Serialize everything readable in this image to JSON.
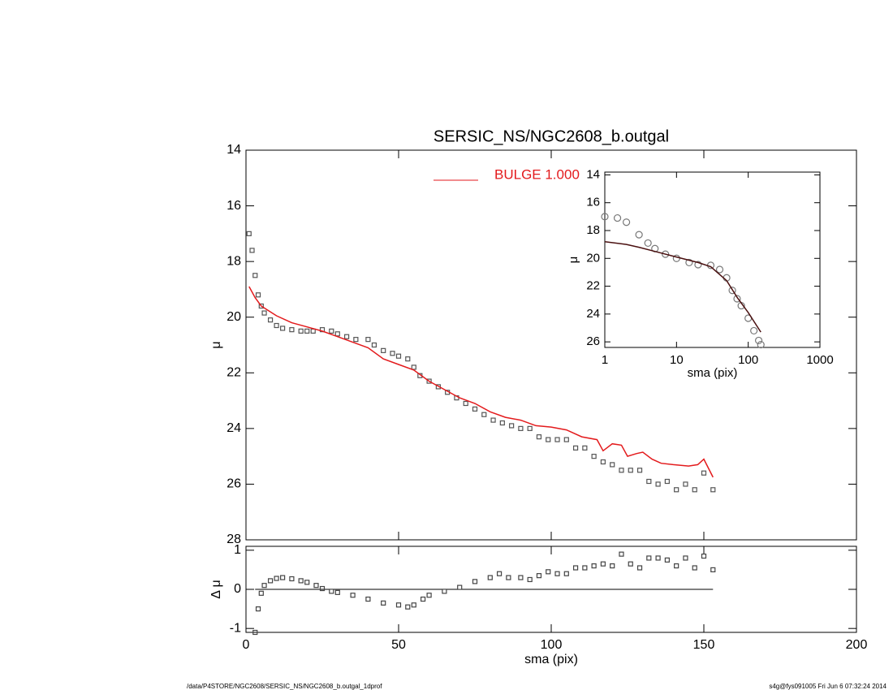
{
  "chart_data": [
    {
      "type": "scatter",
      "title": "SERSIC_NS/NGC2608_b.outgal",
      "ylabel": "μ",
      "xlim": [
        0,
        200
      ],
      "xticks": [
        0,
        50,
        100,
        150,
        200
      ],
      "show_xtick_labels": false,
      "ylim": [
        28,
        14
      ],
      "yticks": [
        14,
        16,
        18,
        20,
        22,
        24,
        26,
        28
      ],
      "legend": "top-center",
      "series": [
        {
          "kind": "points",
          "marker": "square",
          "color": "#555555",
          "x": [
            1,
            2,
            3,
            4,
            5,
            6,
            8,
            10,
            12,
            15,
            18,
            20,
            22,
            25,
            28,
            30,
            33,
            36,
            40,
            42,
            45,
            48,
            50,
            53,
            55,
            57,
            60,
            63,
            66,
            69,
            72,
            75,
            78,
            81,
            84,
            87,
            90,
            93,
            96,
            99,
            102,
            105,
            108,
            111,
            114,
            117,
            120,
            123,
            126,
            129,
            132,
            135,
            138,
            141,
            144,
            147,
            150,
            153
          ],
          "values": [
            17.0,
            17.6,
            18.5,
            19.2,
            19.6,
            19.85,
            20.1,
            20.3,
            20.4,
            20.45,
            20.5,
            20.5,
            20.5,
            20.45,
            20.5,
            20.6,
            20.7,
            20.8,
            20.8,
            21.0,
            21.2,
            21.3,
            21.4,
            21.5,
            21.8,
            22.1,
            22.3,
            22.5,
            22.7,
            22.9,
            23.1,
            23.3,
            23.5,
            23.7,
            23.8,
            23.9,
            24.0,
            24.0,
            24.3,
            24.4,
            24.4,
            24.4,
            24.7,
            24.7,
            25.0,
            25.2,
            25.3,
            25.5,
            25.5,
            25.5,
            25.9,
            26.0,
            25.9,
            26.2,
            26.0,
            26.2,
            25.6,
            26.2
          ]
        },
        {
          "kind": "line",
          "name": "BULGE  1.000",
          "color": "#e31a1c",
          "x": [
            1,
            3,
            5,
            10,
            15,
            20,
            25,
            30,
            35,
            40,
            45,
            50,
            55,
            60,
            65,
            70,
            75,
            80,
            85,
            90,
            95,
            100,
            105,
            110,
            115,
            117,
            120,
            123,
            125,
            128,
            130,
            133,
            136,
            140,
            145,
            148,
            150,
            153
          ],
          "values": [
            18.9,
            19.3,
            19.6,
            19.95,
            20.2,
            20.35,
            20.5,
            20.7,
            20.9,
            21.1,
            21.5,
            21.7,
            21.9,
            22.3,
            22.6,
            22.9,
            23.1,
            23.4,
            23.6,
            23.7,
            23.9,
            23.95,
            24.05,
            24.3,
            24.4,
            24.8,
            24.55,
            24.6,
            25.0,
            24.9,
            24.85,
            25.1,
            25.25,
            25.3,
            25.35,
            25.3,
            25.1,
            25.75
          ]
        }
      ]
    },
    {
      "type": "scatter",
      "xlabel": "sma (pix)",
      "ylabel": "Δ μ",
      "xlim": [
        0,
        200
      ],
      "xticks": [
        0,
        50,
        100,
        150,
        200
      ],
      "show_xtick_labels": true,
      "ylim": [
        -1.1,
        1.1
      ],
      "yticks": [
        -1,
        0,
        1
      ],
      "hline": 0,
      "series": [
        {
          "kind": "points",
          "marker": "square",
          "color": "#444444",
          "x": [
            3,
            4,
            5,
            6,
            8,
            10,
            12,
            15,
            18,
            20,
            23,
            25,
            28,
            30,
            35,
            40,
            45,
            50,
            53,
            55,
            58,
            60,
            65,
            70,
            75,
            80,
            83,
            86,
            90,
            93,
            96,
            99,
            102,
            105,
            108,
            111,
            114,
            117,
            120,
            123,
            126,
            129,
            132,
            135,
            138,
            141,
            144,
            147,
            150,
            153
          ],
          "values": [
            -1.1,
            -0.5,
            -0.1,
            0.1,
            0.22,
            0.28,
            0.3,
            0.27,
            0.22,
            0.18,
            0.1,
            0.02,
            -0.05,
            -0.08,
            -0.15,
            -0.25,
            -0.35,
            -0.4,
            -0.45,
            -0.4,
            -0.25,
            -0.15,
            -0.05,
            0.05,
            0.2,
            0.3,
            0.4,
            0.3,
            0.3,
            0.25,
            0.35,
            0.45,
            0.4,
            0.4,
            0.55,
            0.55,
            0.6,
            0.65,
            0.6,
            0.9,
            0.65,
            0.55,
            0.8,
            0.8,
            0.75,
            0.6,
            0.8,
            0.55,
            0.85,
            0.5
          ]
        }
      ]
    },
    {
      "type": "scatter",
      "xlabel": "sma (pix)",
      "ylabel": "μ",
      "log_x": true,
      "xlim": [
        1,
        1000
      ],
      "xticks": [
        1,
        10,
        100,
        1000
      ],
      "show_xtick_labels": true,
      "ylim": [
        26.4,
        13.8
      ],
      "yticks": [
        14,
        16,
        18,
        20,
        22,
        24,
        26
      ],
      "series": [
        {
          "kind": "points",
          "marker": "circle",
          "color": "#777777",
          "x": [
            1,
            1.5,
            2,
            3,
            4,
            5,
            7,
            10,
            15,
            20,
            30,
            40,
            50,
            60,
            70,
            80,
            100,
            120,
            140,
            150
          ],
          "values": [
            17.0,
            17.1,
            17.4,
            18.3,
            18.9,
            19.3,
            19.7,
            20.0,
            20.3,
            20.45,
            20.5,
            20.8,
            21.4,
            22.3,
            22.9,
            23.4,
            24.3,
            25.2,
            25.9,
            26.2
          ]
        },
        {
          "kind": "line",
          "color": "#4a1010",
          "x": [
            1,
            2,
            3,
            5,
            10,
            20,
            30,
            50,
            70,
            100,
            150
          ],
          "values": [
            18.8,
            19.0,
            19.2,
            19.5,
            19.9,
            20.3,
            20.6,
            21.6,
            22.8,
            23.9,
            25.3
          ]
        }
      ]
    }
  ],
  "footer": {
    "left": "/data/P4STORE/NGC2608/SERSIC_NS/NGC2608_b.outgal_1dprof",
    "right": "s4g@fys091005  Fri Jun  6 07:32:24 2014"
  }
}
